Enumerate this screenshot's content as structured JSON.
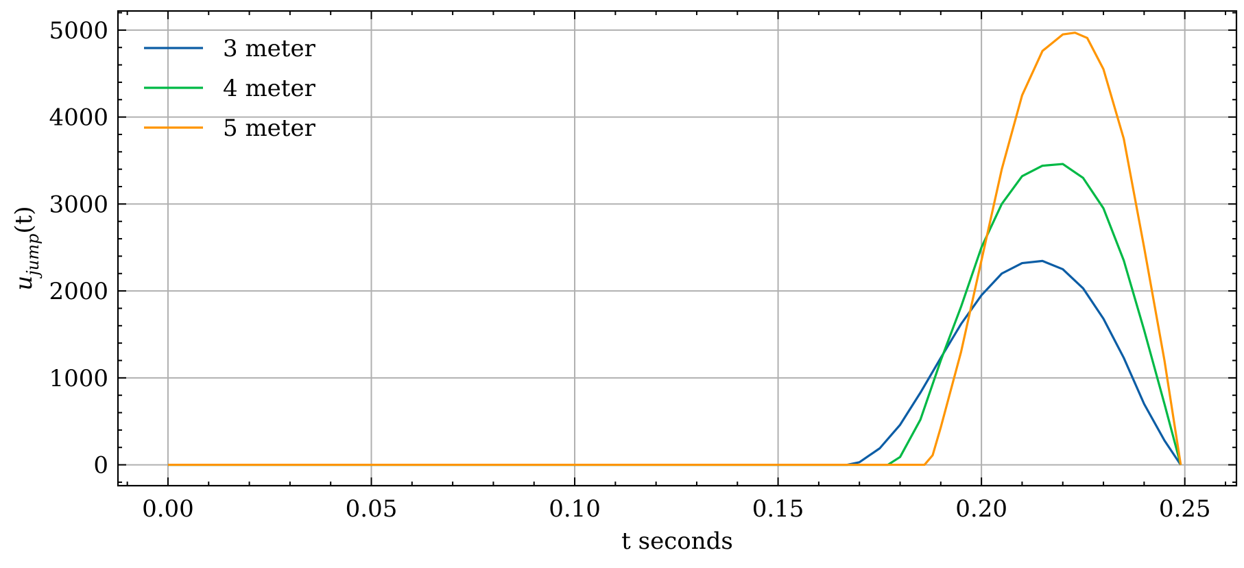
{
  "chart_data": {
    "type": "line",
    "title": "",
    "xlabel": "t seconds",
    "ylabel_base": "u",
    "ylabel_sub": "jump",
    "ylabel_tail": "(t)",
    "xlim": [
      -0.0123,
      0.2627
    ],
    "ylim": [
      -240,
      5220
    ],
    "xticks": [
      0.0,
      0.05,
      0.1,
      0.15,
      0.2,
      0.25
    ],
    "xtick_labels": [
      "0.00",
      "0.05",
      "0.10",
      "0.15",
      "0.20",
      "0.25"
    ],
    "yticks": [
      0,
      1000,
      2000,
      3000,
      4000,
      5000
    ],
    "ytick_labels": [
      "0",
      "1000",
      "2000",
      "3000",
      "4000",
      "5000"
    ],
    "grid": true,
    "legend_position": "top-left",
    "series": [
      {
        "name": "3 meter",
        "color": "#0C5DA5",
        "x": [
          0.0,
          0.05,
          0.1,
          0.15,
          0.167,
          0.17,
          0.175,
          0.18,
          0.185,
          0.19,
          0.195,
          0.2,
          0.205,
          0.21,
          0.215,
          0.22,
          0.225,
          0.23,
          0.235,
          0.24,
          0.245,
          0.249
        ],
        "y": [
          0,
          0,
          0,
          0,
          0,
          30,
          190,
          460,
          830,
          1230,
          1620,
          1950,
          2200,
          2320,
          2345,
          2250,
          2030,
          1680,
          1230,
          700,
          280,
          0
        ]
      },
      {
        "name": "4 meter",
        "color": "#00B945",
        "x": [
          0.0,
          0.05,
          0.1,
          0.15,
          0.177,
          0.18,
          0.185,
          0.19,
          0.195,
          0.2,
          0.205,
          0.21,
          0.215,
          0.22,
          0.225,
          0.23,
          0.235,
          0.24,
          0.245,
          0.249
        ],
        "y": [
          0,
          0,
          0,
          0,
          0,
          90,
          520,
          1200,
          1820,
          2500,
          3000,
          3320,
          3440,
          3460,
          3300,
          2950,
          2350,
          1550,
          700,
          0
        ]
      },
      {
        "name": "5 meter",
        "color": "#FF9500",
        "x": [
          0.0,
          0.05,
          0.1,
          0.15,
          0.186,
          0.188,
          0.19,
          0.195,
          0.2,
          0.205,
          0.21,
          0.215,
          0.22,
          0.223,
          0.226,
          0.23,
          0.235,
          0.24,
          0.245,
          0.249
        ],
        "y": [
          0,
          0,
          0,
          0,
          0,
          110,
          430,
          1300,
          2350,
          3400,
          4250,
          4760,
          4950,
          4970,
          4910,
          4550,
          3750,
          2500,
          1200,
          0
        ]
      }
    ]
  }
}
